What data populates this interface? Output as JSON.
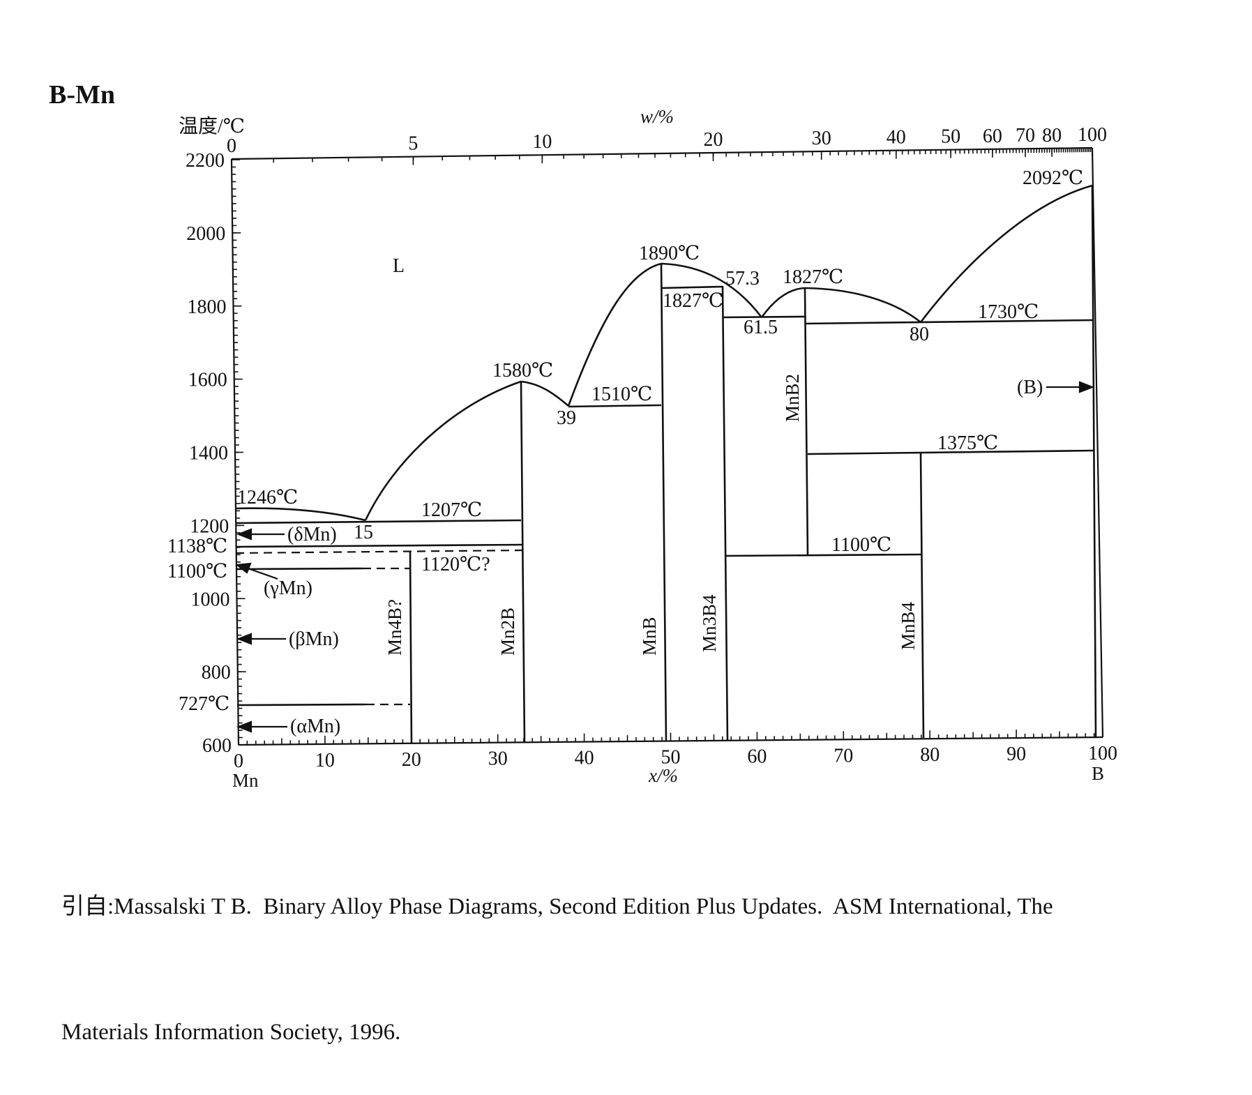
{
  "title": "B-Mn",
  "y_axis_label": "温度/℃",
  "top_axis_label": "w/%",
  "bottom_axis_label": "x/%",
  "left_element": "Mn",
  "right_element": "B",
  "y_ticks": [
    "2200",
    "2000",
    "1800",
    "1600",
    "1400",
    "1200",
    "1000",
    "800",
    "600"
  ],
  "bottom_ticks": [
    "0",
    "10",
    "20",
    "30",
    "40",
    "50",
    "60",
    "70",
    "80",
    "90",
    "100"
  ],
  "top_ticks": [
    "0",
    "5",
    "10",
    "20",
    "30",
    "40",
    "50",
    "60",
    "70",
    "80",
    "100"
  ],
  "temperature_markers": [
    "1138℃",
    "1100℃",
    "727℃"
  ],
  "region_labels": {
    "liquid": "L",
    "delta_mn": "(δMn)",
    "gamma_mn": "(γMn)",
    "beta_mn": "(βMn)",
    "alpha_mn": "(αMn)",
    "b": "(B)"
  },
  "compound_labels": {
    "mn4b": "Mn4B?",
    "mn2b": "Mn2B",
    "mnb": "MnB",
    "mn3b4": "Mn3B4",
    "mnb2": "MnB2",
    "mnb4": "MnB4"
  },
  "point_labels": {
    "t1246": "1246℃",
    "c15": "15",
    "t1207": "1207℃",
    "t1120": "1120℃?",
    "t1580": "1580℃",
    "c39": "39",
    "t1510": "1510℃",
    "t1890": "1890℃",
    "t1827_peritectic": "1827℃",
    "c57_3": "57.3",
    "c61_5": "61.5",
    "t1827_mnb2": "1827℃",
    "c80": "80",
    "t1730": "1730℃",
    "t2092": "2092℃",
    "t1375": "1375℃",
    "t1100": "1100℃"
  },
  "citation": {
    "line1": "引自:Massalski T B.  Binary Alloy Phase Diagrams, Second Edition Plus Updates.  ASM International, The",
    "line2": "Materials Information Society, 1996."
  }
}
